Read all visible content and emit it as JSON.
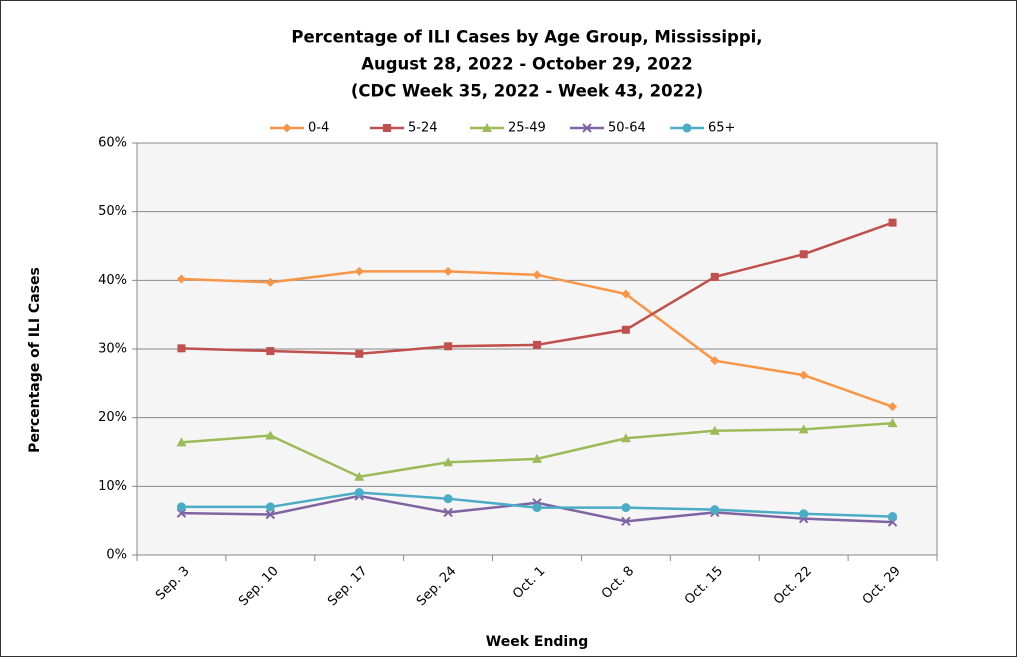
{
  "chart_data": {
    "type": "line",
    "title": [
      "Percentage of ILI Cases by Age Group, Mississippi,",
      "August 28, 2022  - October 29, 2022",
      "(CDC Week 35, 2022 - Week 43, 2022)"
    ],
    "x_label": "Week Ending",
    "y_label": "Percentage of ILI Cases",
    "categories": [
      "Sep. 3",
      "Sep. 10",
      "Sep. 17",
      "Sep. 24",
      "Oct. 1",
      "Oct. 8",
      "Oct. 15",
      "Oct. 22",
      "Oct. 29"
    ],
    "series": [
      {
        "name": "0-4",
        "color": "#f79646",
        "marker": "diamond",
        "values": [
          40.2,
          39.7,
          41.3,
          41.3,
          40.8,
          38.0,
          28.3,
          26.2,
          21.6
        ]
      },
      {
        "name": "5-24",
        "color": "#c0504d",
        "marker": "square",
        "values": [
          30.1,
          29.7,
          29.3,
          30.4,
          30.6,
          32.8,
          40.5,
          43.8,
          48.4
        ]
      },
      {
        "name": "25-49",
        "color": "#9bbb59",
        "marker": "triangle",
        "values": [
          16.4,
          17.4,
          11.4,
          13.5,
          14.0,
          17.0,
          18.1,
          18.3,
          19.2
        ]
      },
      {
        "name": "50-64",
        "color": "#8064a2",
        "marker": "x",
        "values": [
          6.1,
          5.9,
          8.6,
          6.2,
          7.6,
          4.9,
          6.2,
          5.3,
          4.8
        ]
      },
      {
        "name": "65+",
        "color": "#4bacc6",
        "marker": "circle",
        "values": [
          7.0,
          7.0,
          9.1,
          8.2,
          6.9,
          6.9,
          6.6,
          6.0,
          5.6
        ]
      }
    ],
    "ylim": [
      0,
      60
    ],
    "yticks": [
      {
        "value": 0,
        "label": "0%"
      },
      {
        "value": 10,
        "label": "10%"
      },
      {
        "value": 20,
        "label": "20%"
      },
      {
        "value": 30,
        "label": "30%"
      },
      {
        "value": 40,
        "label": "40%"
      },
      {
        "value": 50,
        "label": "50%"
      },
      {
        "value": 60,
        "label": "60%"
      }
    ],
    "grid": true,
    "legend": "top"
  }
}
